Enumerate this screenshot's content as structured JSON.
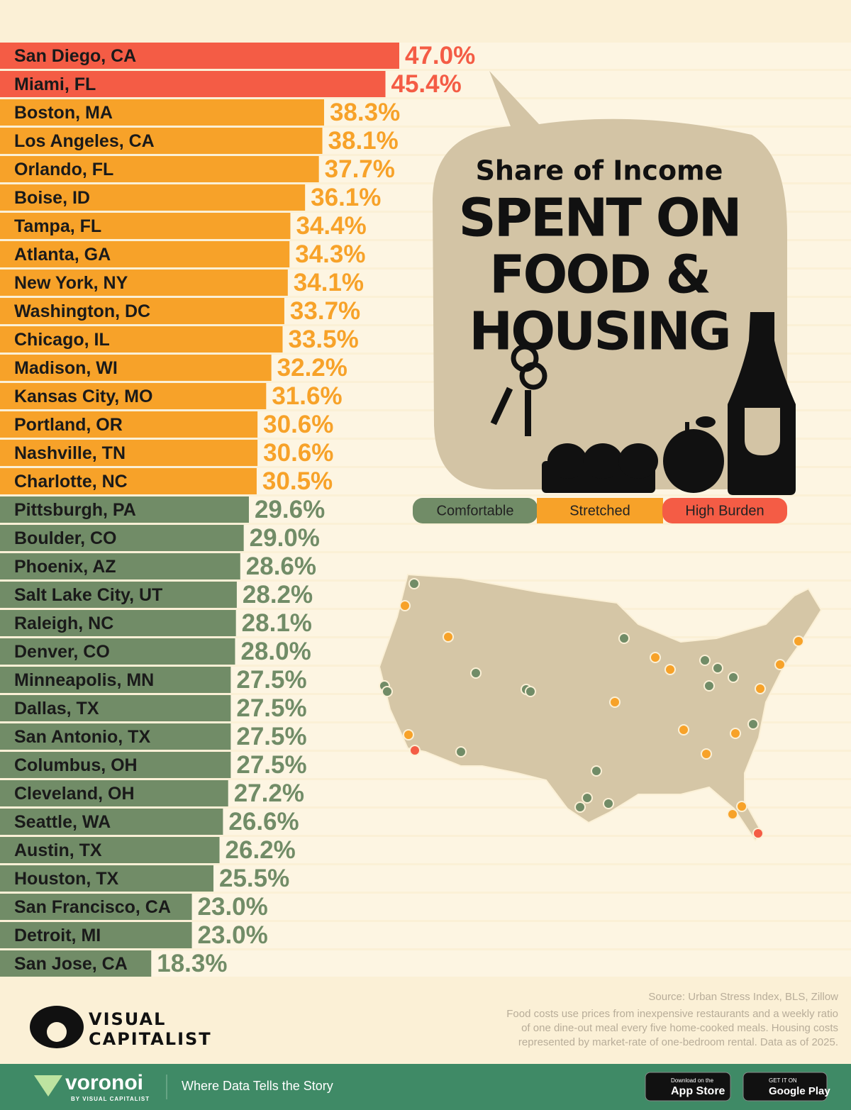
{
  "chart_data": {
    "type": "bar",
    "orientation": "horizontal",
    "title_lines": [
      "Share of Income",
      "SPENT ON",
      "FOOD &",
      "HOUSING"
    ],
    "categories": [
      "San Diego, CA",
      "Miami, FL",
      "Boston, MA",
      "Los Angeles, CA",
      "Orlando, FL",
      "Boise, ID",
      "Tampa, FL",
      "Atlanta, GA",
      "New York, NY",
      "Washington, DC",
      "Chicago, IL",
      "Madison, WI",
      "Kansas City, MO",
      "Portland, OR",
      "Nashville, TN",
      "Charlotte, NC",
      "Pittsburgh, PA",
      "Boulder, CO",
      "Phoenix, AZ",
      "Salt Lake City, UT",
      "Raleigh, NC",
      "Denver, CO",
      "Minneapolis, MN",
      "Dallas, TX",
      "San Antonio, TX",
      "Columbus, OH",
      "Cleveland, OH",
      "Seattle, WA",
      "Austin, TX",
      "Houston, TX",
      "San Francisco, CA",
      "Detroit, MI",
      "San Jose, CA"
    ],
    "values": [
      47.0,
      45.4,
      38.3,
      38.1,
      37.7,
      36.1,
      34.4,
      34.3,
      34.1,
      33.7,
      33.5,
      32.2,
      31.6,
      30.6,
      30.6,
      30.5,
      29.6,
      29.0,
      28.6,
      28.2,
      28.1,
      28.0,
      27.5,
      27.5,
      27.5,
      27.5,
      27.2,
      26.6,
      26.2,
      25.5,
      23.0,
      23.0,
      18.3
    ],
    "value_labels": [
      "47.0%",
      "45.4%",
      "38.3%",
      "38.1%",
      "37.7%",
      "36.1%",
      "34.4%",
      "34.3%",
      "34.1%",
      "33.7%",
      "33.5%",
      "32.2%",
      "31.6%",
      "30.6%",
      "30.6%",
      "30.5%",
      "29.6%",
      "29.0%",
      "28.6%",
      "28.2%",
      "28.1%",
      "28.0%",
      "27.5%",
      "27.5%",
      "27.5%",
      "27.5%",
      "27.2%",
      "26.6%",
      "26.2%",
      "25.5%",
      "23.0%",
      "23.0%",
      "18.3%"
    ],
    "groups": [
      2,
      2,
      1,
      1,
      1,
      1,
      1,
      1,
      1,
      1,
      1,
      1,
      1,
      1,
      1,
      1,
      0,
      0,
      0,
      0,
      0,
      0,
      0,
      0,
      0,
      0,
      0,
      0,
      0,
      0,
      0,
      0,
      0
    ],
    "legend": [
      {
        "name": "Comfortable",
        "color": "#718c67"
      },
      {
        "name": "Stretched",
        "color": "#f7a229"
      },
      {
        "name": "High Burden",
        "color": "#f45c45"
      }
    ],
    "xlim": [
      0.8,
      47
    ]
  },
  "source": "Source: Urban Stress Index, BLS, Zillow",
  "note_lines": [
    "Food costs use prices from inexpensive restaurants and a weekly ratio",
    "of one dine-out meal every five home-cooked meals. Housing costs",
    "represented by market-rate of one-bedroom rental. Data as of 2025."
  ],
  "branding": {
    "logo_top": "VISUAL",
    "logo_bottom": "CAPITALIST",
    "footer_brand": "voronoi",
    "footer_by": "BY VISUAL CAPITALIST",
    "tagline": "Where Data Tells the Story",
    "app_store_small": "Download on the",
    "app_store": "App Store",
    "google_small": "GET IT ON",
    "google": "Google Play"
  }
}
